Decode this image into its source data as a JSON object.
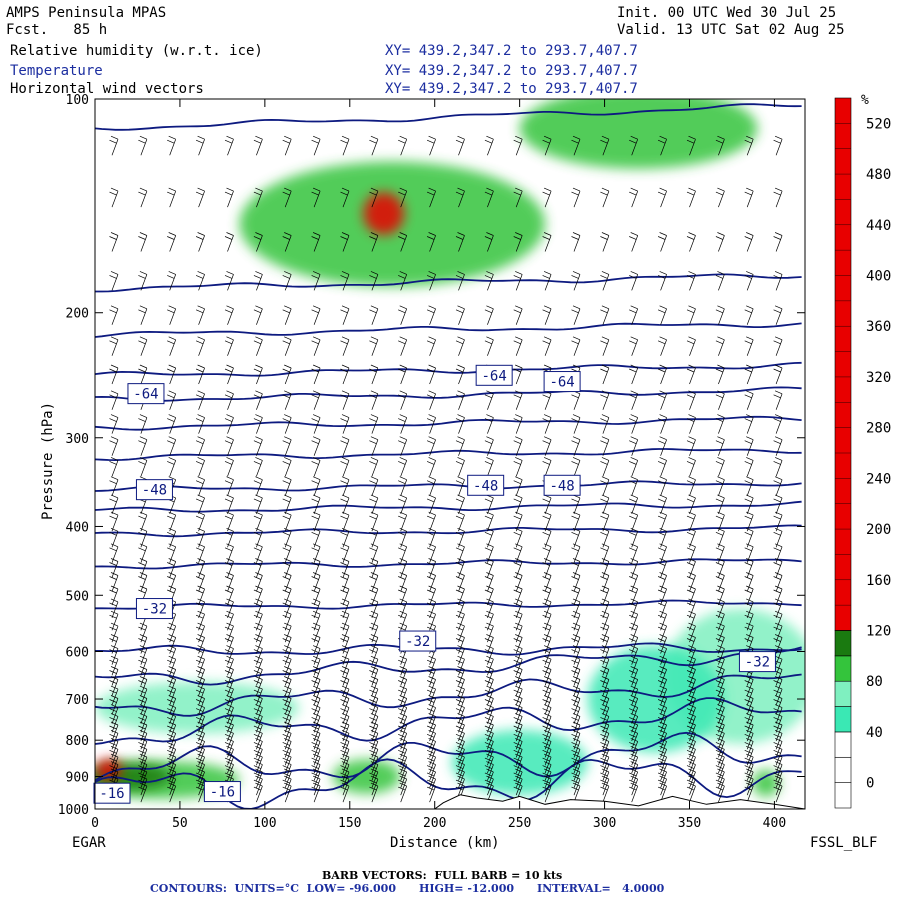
{
  "header": {
    "model": "AMPS Peninsula MPAS",
    "fcst": "Fcst.   85 h",
    "init": "Init. 00 UTC Wed 30 Jul 25",
    "valid": "Valid. 13 UTC Sat 02 Aug 25",
    "fields": [
      {
        "name": "Relative humidity (w.r.t. ice)",
        "xy": "XY= 439.2,347.2 to 293.7,407.7",
        "color": "#000000"
      },
      {
        "name": "Temperature",
        "xy": "XY= 439.2,347.2 to 293.7,407.7",
        "color": "#1c2ea0"
      },
      {
        "name": "Horizontal wind vectors",
        "xy": "XY= 439.2,347.2 to 293.7,407.7",
        "color": "#000000"
      }
    ]
  },
  "labels": {
    "left_station": "EGAR",
    "right_credit": "FSSL_BLF",
    "barb_note": "BARB VECTORS:  FULL BARB = 10 kts",
    "contour_note": "CONTOURS:  UNITS=°C  LOW= -96.000      HIGH= -12.000      INTERVAL=   4.0000"
  },
  "chart_data": {
    "type": "heatmap",
    "xlabel": "Distance (km)",
    "ylabel": "Pressure (hPa)",
    "xlim": [
      0,
      418
    ],
    "ylim": [
      1000,
      100
    ],
    "y_scale": "log",
    "x_ticks": [
      0,
      50,
      100,
      150,
      200,
      250,
      300,
      350,
      400
    ],
    "y_ticks": [
      100,
      200,
      300,
      400,
      500,
      600,
      700,
      800,
      900,
      1000
    ],
    "colorbar": {
      "unit": "%",
      "ticks": [
        0,
        40,
        80,
        120,
        160,
        200,
        240,
        280,
        320,
        360,
        400,
        440,
        480,
        520
      ],
      "levels": [
        {
          "lo": -20,
          "hi": 0,
          "color": "#ffffff"
        },
        {
          "lo": 0,
          "hi": 20,
          "color": "#ffffff"
        },
        {
          "lo": 20,
          "hi": 40,
          "color": "#ffffff"
        },
        {
          "lo": 40,
          "hi": 60,
          "color": "#3ae8b4"
        },
        {
          "lo": 60,
          "hi": 80,
          "color": "#7ff0c0"
        },
        {
          "lo": 80,
          "hi": 100,
          "color": "#34c43c"
        },
        {
          "lo": 100,
          "hi": 120,
          "color": "#1a7a10"
        },
        {
          "lo": 120,
          "hi": 540,
          "color": "#e80000"
        }
      ]
    },
    "humidity_blobs": [
      {
        "x": 40,
        "p": 910,
        "rx": 45,
        "ry": 55,
        "color": "#34c43c"
      },
      {
        "x": 20,
        "p": 900,
        "rx": 25,
        "ry": 40,
        "color": "#1a7a10"
      },
      {
        "x": 8,
        "p": 880,
        "rx": 8,
        "ry": 30,
        "color": "#e80000"
      },
      {
        "x": 60,
        "p": 720,
        "rx": 60,
        "ry": 60,
        "color": "#7ff0c0"
      },
      {
        "x": 175,
        "p": 150,
        "rx": 90,
        "ry": 30,
        "color": "#34c43c"
      },
      {
        "x": 170,
        "p": 145,
        "rx": 12,
        "ry": 10,
        "color": "#e80000"
      },
      {
        "x": 320,
        "p": 110,
        "rx": 70,
        "ry": 20,
        "color": "#34c43c"
      },
      {
        "x": 380,
        "p": 650,
        "rx": 45,
        "ry": 140,
        "color": "#7ff0c0"
      },
      {
        "x": 330,
        "p": 700,
        "rx": 40,
        "ry": 120,
        "color": "#3ae8b4"
      },
      {
        "x": 250,
        "p": 860,
        "rx": 40,
        "ry": 90,
        "color": "#3ae8b4"
      },
      {
        "x": 160,
        "p": 900,
        "rx": 20,
        "ry": 50,
        "color": "#34c43c"
      },
      {
        "x": 395,
        "p": 920,
        "rx": 8,
        "ry": 40,
        "color": "#34c43c"
      }
    ],
    "temperature_contours": [
      {
        "value": -64,
        "label_points": [
          [
            30,
            260
          ],
          [
            235,
            245
          ],
          [
            275,
            250
          ]
        ],
        "p_at_x0": 250
      },
      {
        "value": -48,
        "label_points": [
          [
            35,
            355
          ],
          [
            230,
            350
          ],
          [
            275,
            350
          ]
        ],
        "p_at_x0": 355
      },
      {
        "value": -32,
        "label_points": [
          [
            35,
            522
          ],
          [
            190,
            580
          ],
          [
            390,
            620
          ]
        ],
        "p_at_x0": 520
      },
      {
        "value": -16,
        "label_points": [
          [
            10,
            950
          ],
          [
            75,
            945
          ]
        ],
        "p_at_x0": 945
      }
    ],
    "isotherm_pressures_at_x0": [
      110,
      185,
      215,
      245,
      265,
      290,
      320,
      355,
      380,
      410,
      455,
      520,
      600,
      660,
      720,
      785,
      880,
      945
    ],
    "terrain_top_p": [
      [
        0,
        1000
      ],
      [
        200,
        1000
      ],
      [
        205,
        980
      ],
      [
        215,
        955
      ],
      [
        225,
        965
      ],
      [
        240,
        975
      ],
      [
        250,
        960
      ],
      [
        265,
        985
      ],
      [
        280,
        970
      ],
      [
        300,
        975
      ],
      [
        320,
        990
      ],
      [
        340,
        960
      ],
      [
        360,
        985
      ],
      [
        380,
        970
      ],
      [
        400,
        985
      ],
      [
        418,
        1000
      ]
    ]
  }
}
